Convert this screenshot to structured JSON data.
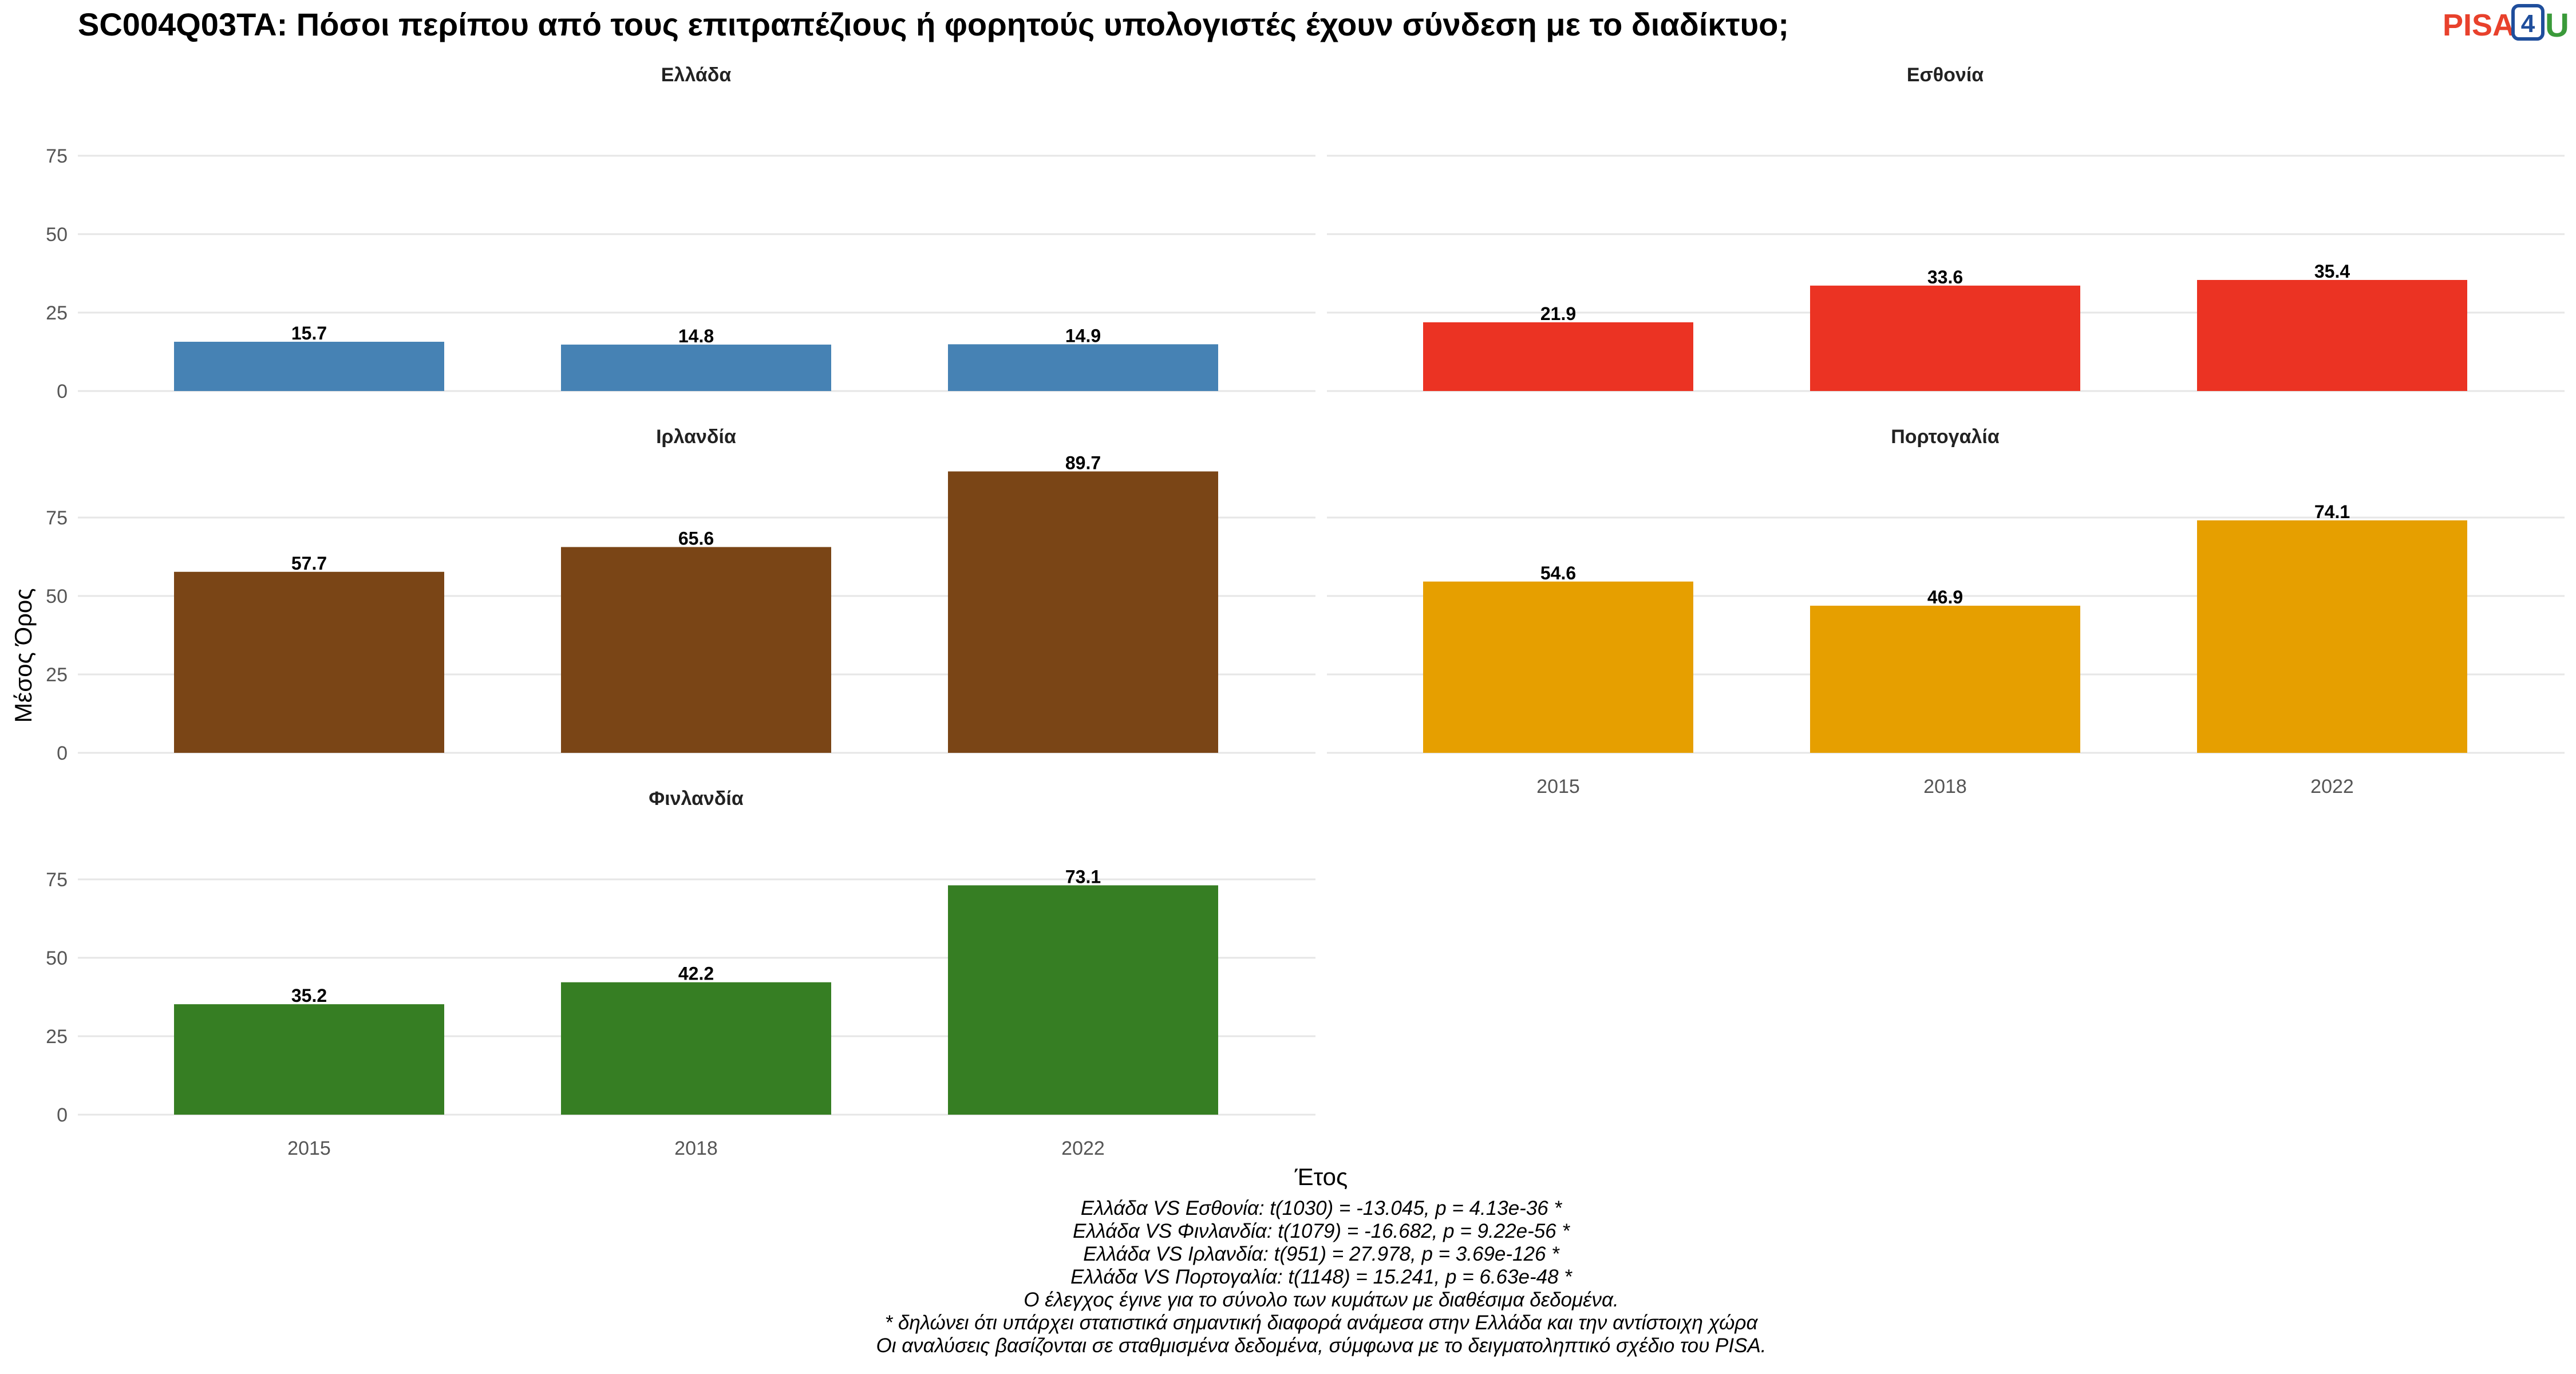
{
  "title": "SC004Q03TA: Πόσοι περίπου από τους επιτραπέζιους ή φορητούς υπολογιστές έχουν σύνδεση με το διαδίκτυο;",
  "logo": {
    "pisa": "PISA",
    "four": "4",
    "u": "U"
  },
  "chart_data": {
    "type": "bar",
    "xlabel": "Έτος",
    "ylabel": "Μέσος Όρος",
    "ylim": [
      0,
      90
    ],
    "yticks": [
      0,
      25,
      50,
      75
    ],
    "categories": [
      "2015",
      "2018",
      "2022"
    ],
    "grid": true,
    "panels": [
      {
        "name": "Ελλάδα",
        "color": "#4682b4",
        "values": [
          15.7,
          14.8,
          14.9
        ],
        "labels": [
          "15.7",
          "14.8",
          "14.9"
        ]
      },
      {
        "name": "Εσθονία",
        "color": "#eb3323",
        "values": [
          21.9,
          33.6,
          35.4
        ],
        "labels": [
          "21.9",
          "33.6",
          "35.4"
        ]
      },
      {
        "name": "Ιρλανδία",
        "color": "#7a4516",
        "values": [
          57.7,
          65.6,
          89.7
        ],
        "labels": [
          "57.7",
          "65.6",
          "89.7"
        ]
      },
      {
        "name": "Πορτογαλία",
        "color": "#e69f00",
        "values": [
          54.6,
          46.9,
          74.1
        ],
        "labels": [
          "54.6",
          "46.9",
          "74.1"
        ]
      },
      {
        "name": "Φινλανδία",
        "color": "#367e23",
        "values": [
          35.2,
          42.2,
          73.1
        ],
        "labels": [
          "35.2",
          "42.2",
          "73.1"
        ]
      }
    ]
  },
  "notes": [
    "Ελλάδα VS Εσθονία: t(1030) = -13.045, p = 4.13e-36 *",
    "Ελλάδα VS Φινλανδία: t(1079) = -16.682, p = 9.22e-56 *",
    "Ελλάδα VS Ιρλανδία: t(951) = 27.978, p = 3.69e-126 *",
    "Ελλάδα VS Πορτογαλία: t(1148) = 15.241, p = 6.63e-48 *",
    "Ο έλεγχος έγινε για το σύνολο των κυμάτων με διαθέσιμα δεδομένα.",
    "* δηλώνει ότι υπάρχει στατιστικά σημαντική διαφορά ανάμεσα στην Ελλάδα και την αντίστοιχη χώρα",
    "Οι αναλύσεις βασίζονται σε σταθμισμένα δεδομένα, σύμφωνα με το δειγματοληπτικό σχέδιο του PISA."
  ]
}
